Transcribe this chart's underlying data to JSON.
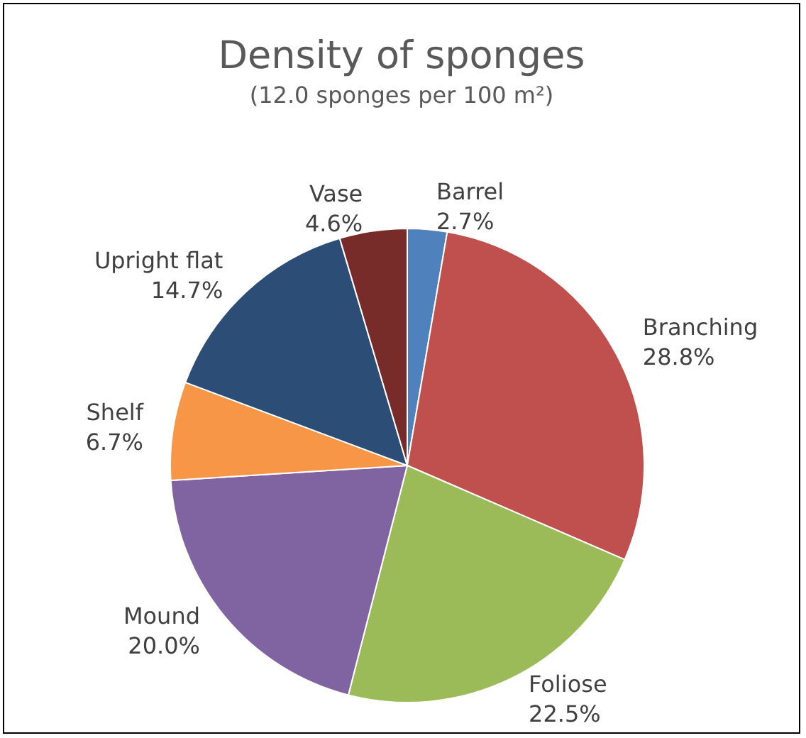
{
  "chart_data": {
    "type": "pie",
    "title": "Density of sponges",
    "subtitle": "(12.0 sponges per 100 m²)",
    "categories": [
      "Barrel",
      "Branching",
      "Foliose",
      "Mound",
      "Shelf",
      "Upright flat",
      "Vase"
    ],
    "values": [
      2.7,
      28.8,
      22.5,
      20.0,
      6.7,
      14.7,
      4.6
    ],
    "value_labels": [
      "2.7%",
      "28.8%",
      "22.5%",
      "20.0%",
      "6.7%",
      "14.7%",
      "4.6%"
    ],
    "colors": [
      "#4f81bd",
      "#c0504d",
      "#9bbb59",
      "#8064a2",
      "#f79646",
      "#2c4d75",
      "#772c2a"
    ],
    "legend": false
  }
}
